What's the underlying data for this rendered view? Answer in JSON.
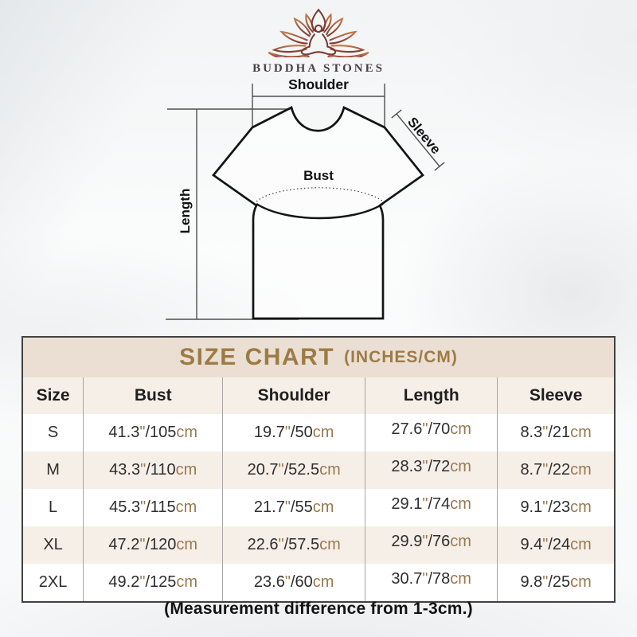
{
  "brand": {
    "name": "BUDDHA STONES"
  },
  "diagram": {
    "shoulder_label": "Shoulder",
    "sleeve_label": "Sleeve",
    "bust_label": "Bust",
    "length_label": "Length"
  },
  "size_chart": {
    "title": "SIZE CHART",
    "units_suffix": "(INCHES/CM)",
    "columns": [
      "Size",
      "Bust",
      "Shoulder",
      "Length",
      "Sleeve"
    ],
    "rows": [
      {
        "size": "S",
        "bust": "41.3\"/105cm",
        "shoulder": "19.7\"/50cm",
        "length": "27.6\"/70cm",
        "sleeve": "8.3\"/21cm"
      },
      {
        "size": "M",
        "bust": "43.3\"/110cm",
        "shoulder": "20.7\"/52.5cm",
        "length": "28.3\"/72cm",
        "sleeve": "8.7\"/22cm"
      },
      {
        "size": "L",
        "bust": "45.3\"/115cm",
        "shoulder": "21.7\"/55cm",
        "length": "29.1\"/74cm",
        "sleeve": "9.1\"/23cm"
      },
      {
        "size": "XL",
        "bust": "47.2\"/120cm",
        "shoulder": "22.6\"/57.5cm",
        "length": "29.9\"/76cm",
        "sleeve": "9.4\"/24cm"
      },
      {
        "size": "2XL",
        "bust": "49.2\"/125cm",
        "shoulder": "23.6\"/60cm",
        "length": "30.7\"/78cm",
        "sleeve": "9.8\"/25cm"
      }
    ]
  },
  "footnote": "(Measurement difference from 1-3cm.)",
  "colors": {
    "accent_gold": "#997950",
    "title_gold": "#9c7b45",
    "title_band_bg": "#ebdfd4",
    "beige_row_bg": "#f6efe7",
    "table_border": "#434040",
    "logo_top": "#c57a4c",
    "logo_bottom": "#7d3a31"
  }
}
